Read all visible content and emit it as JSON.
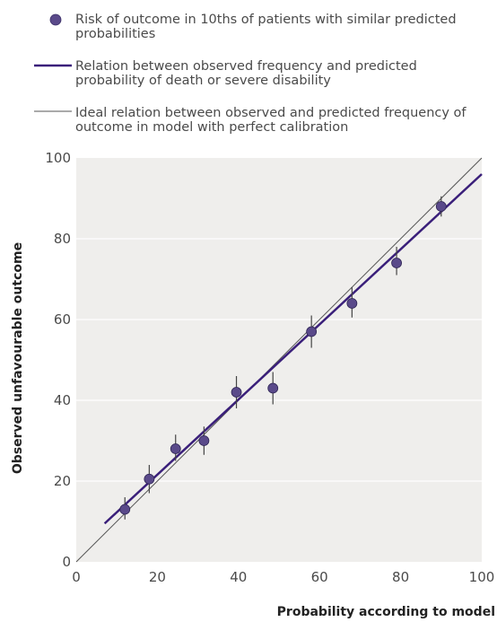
{
  "legend": {
    "points": "Risk of outcome in 10ths of patients with similar predicted probabilities",
    "fitted": "Relation between observed frequency and predicted probability of death or severe disability",
    "ideal": "Ideal relation between observed and predicted frequency of outcome in model with perfect calibration"
  },
  "chart_data": {
    "type": "scatter",
    "xlabel": "Probability according to model",
    "ylabel": "Observed unfavourable outcome",
    "xlim": [
      0,
      100
    ],
    "ylim": [
      0,
      100
    ],
    "x_ticks": [
      "0",
      "20",
      "40",
      "60",
      "80",
      "100"
    ],
    "y_ticks": [
      "0",
      "20",
      "40",
      "60",
      "80",
      "100"
    ],
    "points": [
      {
        "x": 12,
        "y": 13,
        "lo": 10.5,
        "hi": 16
      },
      {
        "x": 18,
        "y": 20.5,
        "lo": 17,
        "hi": 24
      },
      {
        "x": 24.5,
        "y": 28,
        "lo": 25,
        "hi": 31.5
      },
      {
        "x": 31.5,
        "y": 30,
        "lo": 26.5,
        "hi": 33.5
      },
      {
        "x": 39.5,
        "y": 42,
        "lo": 38,
        "hi": 46
      },
      {
        "x": 48.5,
        "y": 43,
        "lo": 39,
        "hi": 47
      },
      {
        "x": 58,
        "y": 57,
        "lo": 53,
        "hi": 61
      },
      {
        "x": 68,
        "y": 64,
        "lo": 60.5,
        "hi": 68
      },
      {
        "x": 79,
        "y": 74,
        "lo": 71,
        "hi": 78
      },
      {
        "x": 90,
        "y": 88,
        "lo": 85.5,
        "hi": 90.5
      }
    ],
    "fitted_line": {
      "x": [
        7,
        100
      ],
      "y": [
        9.5,
        96
      ]
    },
    "ideal_line": {
      "x": [
        0,
        100
      ],
      "y": [
        0,
        100
      ]
    },
    "colors": {
      "marker": "#5a4a8a",
      "fitted": "#3a1f7a",
      "ideal": "#555555",
      "plot_bg": "#efeeec",
      "grid": "#ffffff"
    }
  }
}
